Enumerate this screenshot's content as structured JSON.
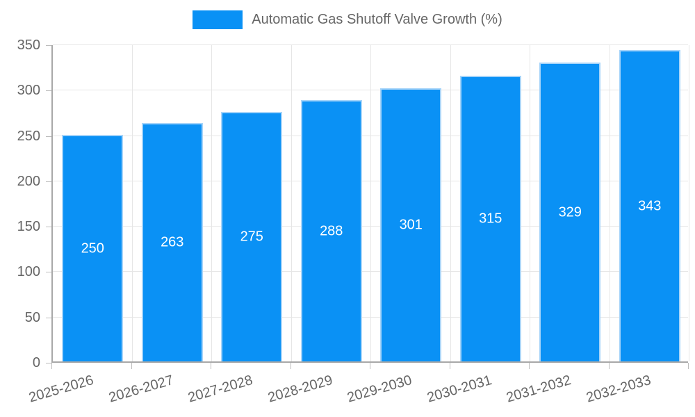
{
  "legend": {
    "label": "Automatic Gas Shutoff Valve Growth (%)"
  },
  "colors": {
    "bar_fill": "#0a91f5",
    "bar_border": "#a6d4f9",
    "gridline": "#e6e6e6",
    "axis_line": "#a8a8a8",
    "tick_mark": "#bdbdbd",
    "tick_text": "#666666",
    "value_label_text": "#ffffff",
    "background": "#ffffff"
  },
  "chart_data": {
    "type": "bar",
    "title": "Automatic Gas Shutoff Valve Growth (%)",
    "categories": [
      "2025-2026",
      "2026-2027",
      "2027-2028",
      "2028-2029",
      "2029-2030",
      "2030-2031",
      "2031-2032",
      "2032-2033"
    ],
    "values": [
      250,
      263,
      275,
      288,
      301,
      315,
      329,
      343
    ],
    "value_labels": [
      "250",
      "263",
      "275",
      "288",
      "301",
      "315",
      "329",
      "343"
    ],
    "xlabel": "",
    "ylabel": "",
    "ylim": [
      0,
      350
    ],
    "yticks": [
      0,
      50,
      100,
      150,
      200,
      250,
      300,
      350
    ],
    "grid": "both",
    "legend_position": "top-center",
    "value_label_position": "inside-center",
    "x_label_rotation_deg": -16
  }
}
